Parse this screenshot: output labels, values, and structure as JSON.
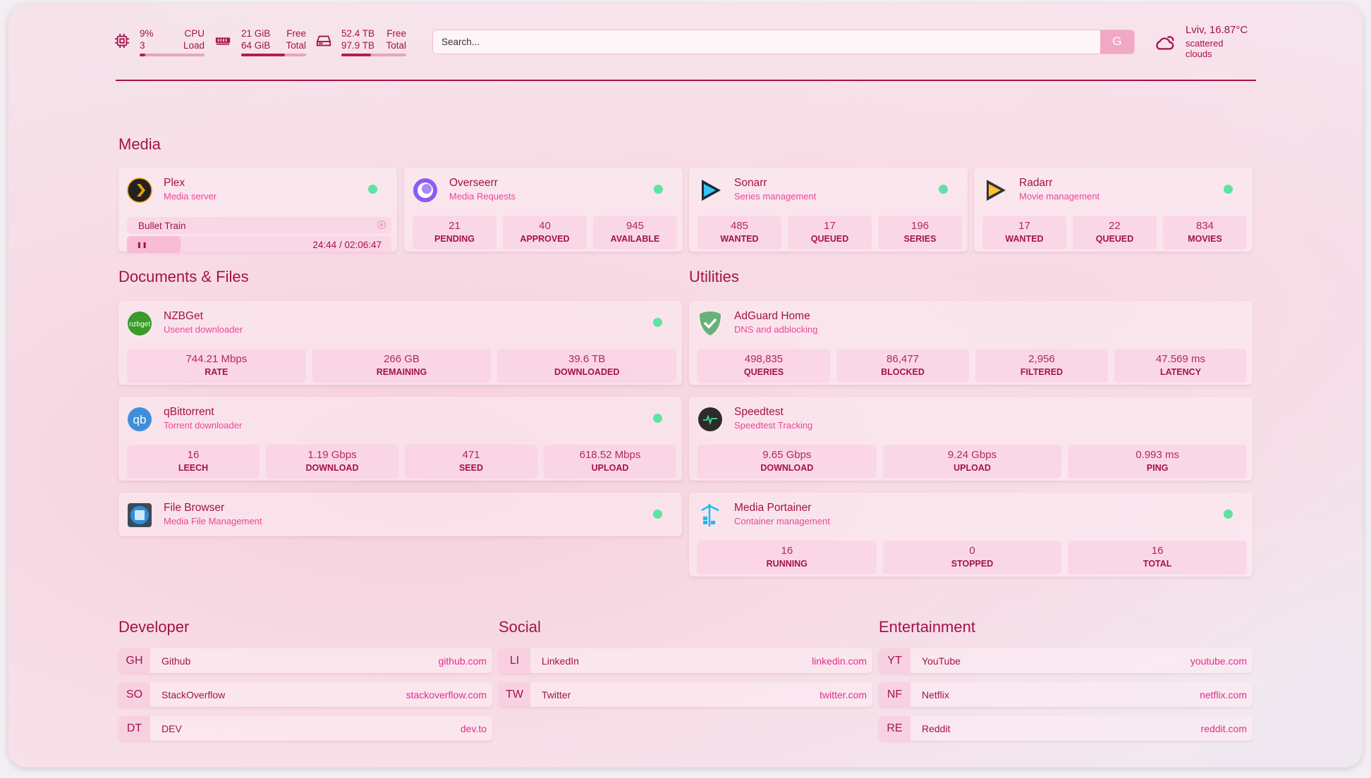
{
  "header": {
    "cpu": {
      "value": "9%",
      "label": "CPU",
      "value2": "3",
      "label2": "Load",
      "usage": 0.09,
      "icon": "cpu-icon"
    },
    "memory": {
      "value": "21 GiB",
      "label": "Free",
      "value2": "64 GiB",
      "label2": "Total",
      "usage": 0.67,
      "icon": "memory-icon"
    },
    "disk": {
      "value": "52.4 TB",
      "label": "Free",
      "value2": "97.9 TB",
      "label2": "Total",
      "usage": 0.46,
      "icon": "disk-icon"
    },
    "search": {
      "placeholder": "Search...",
      "button": "G"
    },
    "weather": {
      "location": "Lviv, 16.87°C",
      "description": "scattered clouds",
      "icon": "cloud-sun-icon"
    }
  },
  "colors": {
    "accent": "#a3124a",
    "subtitle": "#e9479a",
    "status_ok": "#5fe2a6"
  },
  "sections": {
    "media": "Media",
    "documents": "Documents & Files",
    "utilities": "Utilities",
    "developer": "Developer",
    "social": "Social",
    "entertainment": "Entertainment"
  },
  "media": [
    {
      "name": "Plex",
      "desc": "Media server",
      "icon": "plex-icon",
      "now_playing": {
        "title": "Bullet Train",
        "time": "24:44 / 02:06:47",
        "progress": 0.195
      }
    },
    {
      "name": "Overseerr",
      "desc": "Media Requests",
      "icon": "overseerr-icon",
      "stats": [
        {
          "v": "21",
          "l": "PENDING"
        },
        {
          "v": "40",
          "l": "APPROVED"
        },
        {
          "v": "945",
          "l": "AVAILABLE"
        }
      ]
    },
    {
      "name": "Sonarr",
      "desc": "Series management",
      "icon": "sonarr-icon",
      "stats": [
        {
          "v": "485",
          "l": "WANTED"
        },
        {
          "v": "17",
          "l": "QUEUED"
        },
        {
          "v": "196",
          "l": "SERIES"
        }
      ]
    },
    {
      "name": "Radarr",
      "desc": "Movie management",
      "icon": "radarr-icon",
      "stats": [
        {
          "v": "17",
          "l": "WANTED"
        },
        {
          "v": "22",
          "l": "QUEUED"
        },
        {
          "v": "834",
          "l": "MOVIES"
        }
      ]
    }
  ],
  "documents": [
    {
      "name": "NZBGet",
      "desc": "Usenet downloader",
      "icon": "nzbget-icon",
      "stats": [
        {
          "v": "744.21 Mbps",
          "l": "RATE"
        },
        {
          "v": "266 GB",
          "l": "REMAINING"
        },
        {
          "v": "39.6 TB",
          "l": "DOWNLOADED"
        }
      ]
    },
    {
      "name": "qBittorrent",
      "desc": "Torrent downloader",
      "icon": "qbittorrent-icon",
      "stats": [
        {
          "v": "16",
          "l": "LEECH"
        },
        {
          "v": "1.19 Gbps",
          "l": "DOWNLOAD"
        },
        {
          "v": "471",
          "l": "SEED"
        },
        {
          "v": "618.52 Mbps",
          "l": "UPLOAD"
        }
      ]
    },
    {
      "name": "File Browser",
      "desc": "Media File Management",
      "icon": "filebrowser-icon"
    }
  ],
  "utilities": [
    {
      "name": "AdGuard Home",
      "desc": "DNS and adblocking",
      "icon": "adguard-icon",
      "stats": [
        {
          "v": "498,835",
          "l": "QUERIES"
        },
        {
          "v": "86,477",
          "l": "BLOCKED"
        },
        {
          "v": "2,956",
          "l": "FILTERED"
        },
        {
          "v": "47.569 ms",
          "l": "LATENCY"
        }
      ]
    },
    {
      "name": "Speedtest",
      "desc": "Speedtest Tracking",
      "icon": "speedtest-icon",
      "stats": [
        {
          "v": "9.65 Gbps",
          "l": "DOWNLOAD"
        },
        {
          "v": "9.24 Gbps",
          "l": "UPLOAD"
        },
        {
          "v": "0.993 ms",
          "l": "PING"
        }
      ]
    },
    {
      "name": "Media Portainer",
      "desc": "Container management",
      "icon": "portainer-icon",
      "status": true,
      "stats": [
        {
          "v": "16",
          "l": "RUNNING"
        },
        {
          "v": "0",
          "l": "STOPPED"
        },
        {
          "v": "16",
          "l": "TOTAL"
        }
      ]
    }
  ],
  "bookmarks": {
    "developer": [
      {
        "abbr": "GH",
        "name": "Github",
        "url": "github.com"
      },
      {
        "abbr": "SO",
        "name": "StackOverflow",
        "url": "stackoverflow.com"
      },
      {
        "abbr": "DT",
        "name": "DEV",
        "url": "dev.to"
      }
    ],
    "social": [
      {
        "abbr": "LI",
        "name": "LinkedIn",
        "url": "linkedin.com"
      },
      {
        "abbr": "TW",
        "name": "Twitter",
        "url": "twitter.com"
      }
    ],
    "entertainment": [
      {
        "abbr": "YT",
        "name": "YouTube",
        "url": "youtube.com"
      },
      {
        "abbr": "NF",
        "name": "Netflix",
        "url": "netflix.com"
      },
      {
        "abbr": "RE",
        "name": "Reddit",
        "url": "reddit.com"
      }
    ]
  }
}
